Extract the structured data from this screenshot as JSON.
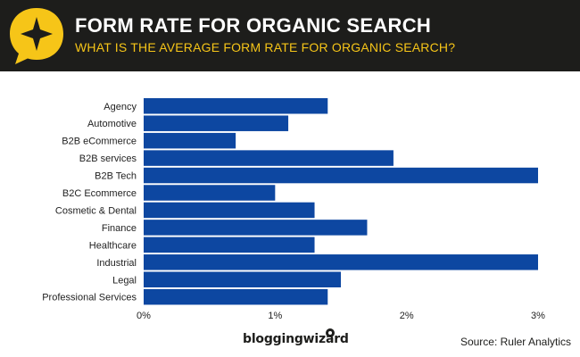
{
  "header": {
    "title": "FORM RATE FOR ORGANIC SEARCH",
    "subtitle": "WHAT IS THE AVERAGE FORM RATE FOR ORGANIC SEARCH?"
  },
  "footer": {
    "brand": "bloggingwizard",
    "source": "Source: Ruler Analytics"
  },
  "colors": {
    "header_bg": "#1d1d1b",
    "accent_yellow": "#f6c518",
    "bar": "#0d47a1"
  },
  "chart_data": {
    "type": "bar",
    "orientation": "horizontal",
    "categories": [
      "Agency",
      "Automotive",
      "B2B eCommerce",
      "B2B services",
      "B2B Tech",
      "B2C Ecommerce",
      "Cosmetic & Dental",
      "Finance",
      "Healthcare",
      "Industrial",
      "Legal",
      "Professional Services"
    ],
    "values": [
      1.4,
      1.1,
      0.7,
      1.9,
      3.0,
      1.0,
      1.3,
      1.7,
      1.3,
      3.0,
      1.5,
      1.4
    ],
    "unit": "%",
    "xlim": [
      0,
      3
    ],
    "x_ticks": [
      0,
      1,
      2,
      3
    ],
    "x_tick_labels": [
      "0%",
      "1%",
      "2%",
      "3%"
    ],
    "grid": false,
    "legend": "none"
  }
}
